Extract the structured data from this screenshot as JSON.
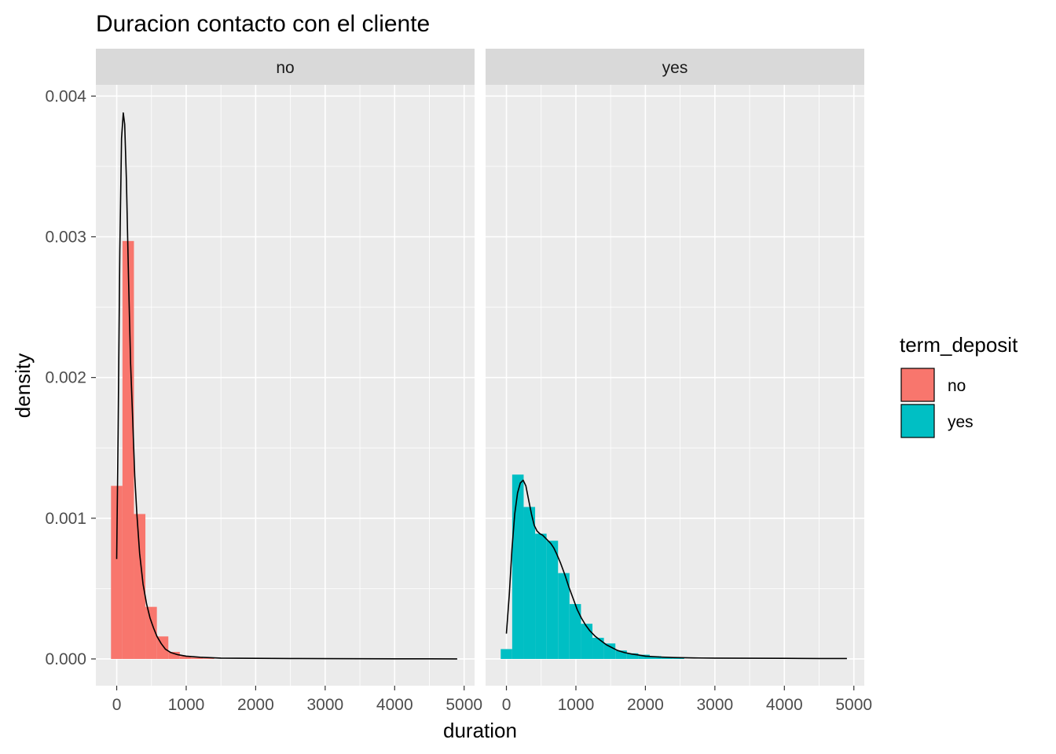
{
  "chart_data": {
    "type": "histogram-density",
    "title": "Duracion contacto con el cliente",
    "xlabel": "duration",
    "ylabel": "density",
    "xlim": [
      -300,
      5150
    ],
    "ylim": [
      -0.00019,
      0.00408
    ],
    "x_ticks": [
      0,
      1000,
      2000,
      3000,
      4000,
      5000
    ],
    "x_tick_labels": [
      "0",
      "1000",
      "2000",
      "3000",
      "4000",
      "5000"
    ],
    "y_ticks": [
      0,
      0.001,
      0.002,
      0.003,
      0.004
    ],
    "y_tick_labels": [
      "0.000",
      "0.001",
      "0.002",
      "0.003",
      "0.004"
    ],
    "grid": true,
    "bin_width": 165,
    "legend": {
      "title": "term_deposit",
      "position": "right",
      "entries": [
        {
          "label": "no",
          "color": "#F8766D"
        },
        {
          "label": "yes",
          "color": "#00BFC4"
        }
      ]
    },
    "panels": [
      {
        "strip": "no",
        "fill": "#F8766D",
        "bins": [
          {
            "x0": -82,
            "x1": 83,
            "density": 0.00123
          },
          {
            "x0": 83,
            "x1": 248,
            "density": 0.00297
          },
          {
            "x0": 248,
            "x1": 413,
            "density": 0.00103
          },
          {
            "x0": 413,
            "x1": 578,
            "density": 0.00037
          },
          {
            "x0": 578,
            "x1": 743,
            "density": 0.00016
          },
          {
            "x0": 743,
            "x1": 908,
            "density": 5e-05
          },
          {
            "x0": 908,
            "x1": 1073,
            "density": 2e-05
          },
          {
            "x0": 1073,
            "x1": 1238,
            "density": 1e-05
          },
          {
            "x0": 1238,
            "x1": 1403,
            "density": 5e-06
          }
        ],
        "density_curve": [
          [
            0,
            0.00071
          ],
          [
            20,
            0.0016
          ],
          [
            45,
            0.0029
          ],
          [
            70,
            0.0037
          ],
          [
            95,
            0.00388
          ],
          [
            115,
            0.0038
          ],
          [
            140,
            0.0034
          ],
          [
            170,
            0.0027
          ],
          [
            200,
            0.0021
          ],
          [
            230,
            0.0017
          ],
          [
            260,
            0.0013
          ],
          [
            290,
            0.00103
          ],
          [
            330,
            0.00075
          ],
          [
            380,
            0.00053
          ],
          [
            430,
            0.00039
          ],
          [
            480,
            0.00029
          ],
          [
            530,
            0.00022
          ],
          [
            580,
            0.00016
          ],
          [
            640,
            0.00011
          ],
          [
            700,
            7e-05
          ],
          [
            780,
            4.5e-05
          ],
          [
            880,
            3e-05
          ],
          [
            1000,
            2e-05
          ],
          [
            1200,
            1.2e-05
          ],
          [
            1500,
            6e-06
          ],
          [
            2000,
            4e-06
          ],
          [
            2500,
            3e-06
          ],
          [
            3000,
            2e-06
          ],
          [
            3500,
            1.5e-06
          ],
          [
            4000,
            1e-06
          ],
          [
            4500,
            8e-07
          ],
          [
            4900,
            6e-07
          ]
        ]
      },
      {
        "strip": "yes",
        "fill": "#00BFC4",
        "bins": [
          {
            "x0": -82,
            "x1": 83,
            "density": 7e-05
          },
          {
            "x0": 83,
            "x1": 248,
            "density": 0.00131
          },
          {
            "x0": 248,
            "x1": 413,
            "density": 0.00108
          },
          {
            "x0": 413,
            "x1": 578,
            "density": 0.00089
          },
          {
            "x0": 578,
            "x1": 743,
            "density": 0.00084
          },
          {
            "x0": 743,
            "x1": 908,
            "density": 0.00061
          },
          {
            "x0": 908,
            "x1": 1073,
            "density": 0.00039
          },
          {
            "x0": 1073,
            "x1": 1238,
            "density": 0.00025
          },
          {
            "x0": 1238,
            "x1": 1403,
            "density": 0.00015
          },
          {
            "x0": 1403,
            "x1": 1568,
            "density": 0.00011
          },
          {
            "x0": 1568,
            "x1": 1733,
            "density": 6e-05
          },
          {
            "x0": 1733,
            "x1": 1898,
            "density": 4e-05
          },
          {
            "x0": 1898,
            "x1": 2063,
            "density": 3e-05
          },
          {
            "x0": 2063,
            "x1": 2228,
            "density": 2e-05
          },
          {
            "x0": 2228,
            "x1": 2393,
            "density": 1e-05
          },
          {
            "x0": 2393,
            "x1": 2558,
            "density": 8e-06
          }
        ],
        "density_curve": [
          [
            0,
            0.00018
          ],
          [
            40,
            0.00045
          ],
          [
            80,
            0.00078
          ],
          [
            120,
            0.00103
          ],
          [
            160,
            0.00118
          ],
          [
            200,
            0.00125
          ],
          [
            240,
            0.00127
          ],
          [
            280,
            0.00123
          ],
          [
            320,
            0.00113
          ],
          [
            360,
            0.00103
          ],
          [
            400,
            0.00095
          ],
          [
            440,
            0.00091
          ],
          [
            480,
            0.00089
          ],
          [
            520,
            0.00088
          ],
          [
            560,
            0.00086
          ],
          [
            600,
            0.00084
          ],
          [
            640,
            0.00082
          ],
          [
            680,
            0.00079
          ],
          [
            720,
            0.00075
          ],
          [
            780,
            0.00068
          ],
          [
            840,
            0.0006
          ],
          [
            900,
            0.00051
          ],
          [
            960,
            0.00043
          ],
          [
            1020,
            0.00035
          ],
          [
            1080,
            0.00029
          ],
          [
            1140,
            0.00024
          ],
          [
            1200,
            0.0002
          ],
          [
            1280,
            0.00016
          ],
          [
            1360,
            0.00013
          ],
          [
            1440,
            0.0001
          ],
          [
            1520,
            8e-05
          ],
          [
            1600,
            6e-05
          ],
          [
            1700,
            4.5e-05
          ],
          [
            1800,
            3.5e-05
          ],
          [
            1900,
            2.8e-05
          ],
          [
            2000,
            2e-05
          ],
          [
            2200,
            1.4e-05
          ],
          [
            2400,
            1e-05
          ],
          [
            2700,
            7e-06
          ],
          [
            3000,
            6e-06
          ],
          [
            3500,
            5e-06
          ],
          [
            4000,
            4e-06
          ],
          [
            4500,
            3e-06
          ],
          [
            4900,
            3e-06
          ]
        ]
      }
    ]
  }
}
